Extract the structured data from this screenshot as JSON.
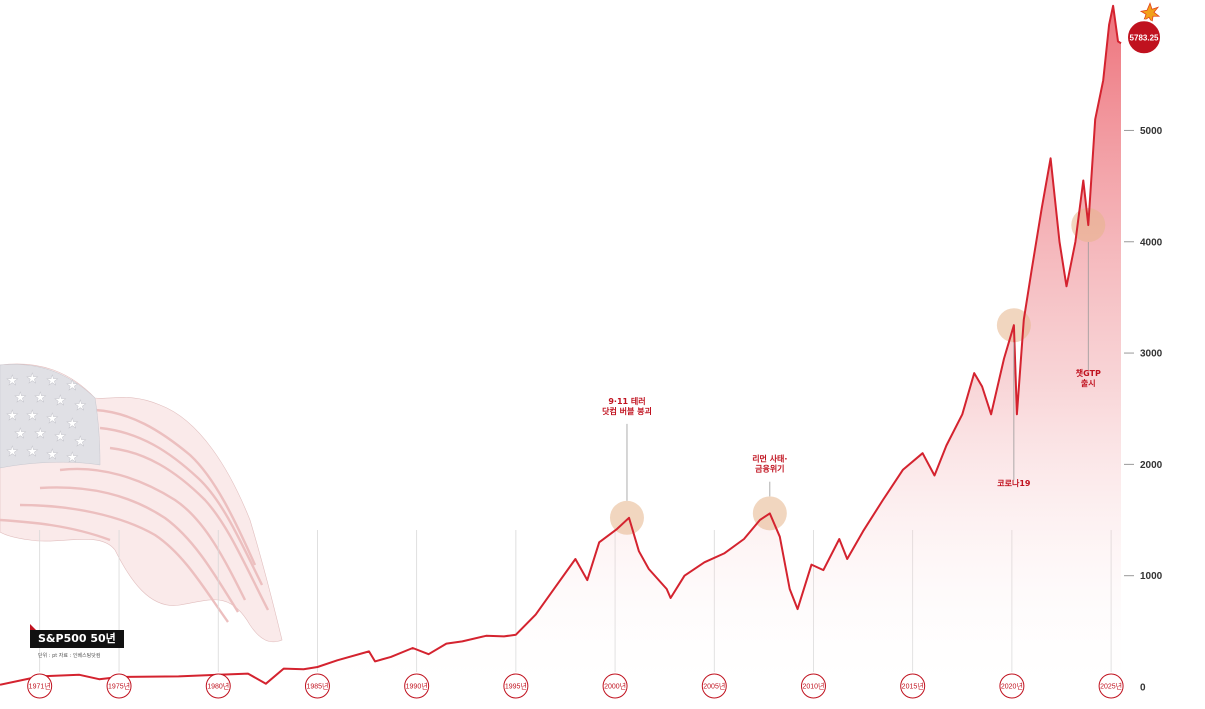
{
  "chart_data": {
    "type": "line",
    "title": "S&P500 50년",
    "subtitle": "단위 : pt  자료 : 인베스팅닷컴",
    "xlabel": "",
    "ylabel": "",
    "xlim": [
      1969,
      2025.6
    ],
    "ylim": [
      0,
      6100
    ],
    "y_ticks": [
      0,
      1000,
      2000,
      3000,
      4000,
      5000
    ],
    "x_ticks": [
      {
        "year": 1971,
        "label": "1971년"
      },
      {
        "year": 1975,
        "label": "1975년"
      },
      {
        "year": 1980,
        "label": "1980년"
      },
      {
        "year": 1985,
        "label": "1985년"
      },
      {
        "year": 1990,
        "label": "1990년"
      },
      {
        "year": 1995,
        "label": "1995년"
      },
      {
        "year": 2000,
        "label": "2000년"
      },
      {
        "year": 2005,
        "label": "2005년"
      },
      {
        "year": 2010,
        "label": "2010년"
      },
      {
        "year": 2015,
        "label": "2015년"
      },
      {
        "year": 2020,
        "label": "2020년"
      },
      {
        "year": 2025,
        "label": "2025년"
      }
    ],
    "series": [
      {
        "name": "S&P500",
        "color": "#d4232f",
        "points": [
          [
            1969,
            20
          ],
          [
            1971,
            95
          ],
          [
            1973,
            110
          ],
          [
            1974,
            70
          ],
          [
            1975,
            90
          ],
          [
            1978,
            95
          ],
          [
            1980,
            110
          ],
          [
            1981.5,
            120
          ],
          [
            1982.4,
            30
          ],
          [
            1983.3,
            165
          ],
          [
            1984.3,
            160
          ],
          [
            1985,
            180
          ],
          [
            1986,
            240
          ],
          [
            1987.6,
            320
          ],
          [
            1987.9,
            230
          ],
          [
            1988.7,
            270
          ],
          [
            1989.8,
            350
          ],
          [
            1990.6,
            295
          ],
          [
            1991.5,
            390
          ],
          [
            1992.3,
            410
          ],
          [
            1993.5,
            460
          ],
          [
            1994.4,
            455
          ],
          [
            1995,
            470
          ],
          [
            1996,
            650
          ],
          [
            1997,
            900
          ],
          [
            1998,
            1150
          ],
          [
            1998.6,
            960
          ],
          [
            1999.2,
            1300
          ],
          [
            2000.1,
            1420
          ],
          [
            2000.7,
            1520
          ],
          [
            2001.2,
            1220
          ],
          [
            2001.7,
            1060
          ],
          [
            2002.6,
            880
          ],
          [
            2002.8,
            800
          ],
          [
            2003.5,
            1000
          ],
          [
            2004.5,
            1120
          ],
          [
            2005.5,
            1200
          ],
          [
            2006.5,
            1330
          ],
          [
            2007.3,
            1500
          ],
          [
            2007.8,
            1560
          ],
          [
            2008.3,
            1350
          ],
          [
            2008.8,
            880
          ],
          [
            2009.2,
            700
          ],
          [
            2009.9,
            1100
          ],
          [
            2010.5,
            1050
          ],
          [
            2011.3,
            1330
          ],
          [
            2011.7,
            1150
          ],
          [
            2012.5,
            1400
          ],
          [
            2013.5,
            1680
          ],
          [
            2014.5,
            1950
          ],
          [
            2015.5,
            2100
          ],
          [
            2016.1,
            1900
          ],
          [
            2016.7,
            2170
          ],
          [
            2017.5,
            2450
          ],
          [
            2018.1,
            2820
          ],
          [
            2018.5,
            2700
          ],
          [
            2018.95,
            2450
          ],
          [
            2019.6,
            2950
          ],
          [
            2020.1,
            3250
          ],
          [
            2020.25,
            2450
          ],
          [
            2020.6,
            3300
          ],
          [
            2021,
            3750
          ],
          [
            2021.5,
            4300
          ],
          [
            2021.95,
            4750
          ],
          [
            2022.4,
            4000
          ],
          [
            2022.75,
            3600
          ],
          [
            2023.2,
            4000
          ],
          [
            2023.6,
            4550
          ],
          [
            2023.85,
            4150
          ],
          [
            2024.2,
            5100
          ],
          [
            2024.6,
            5450
          ],
          [
            2024.9,
            5950
          ],
          [
            2025.1,
            6120
          ],
          [
            2025.35,
            5800
          ],
          [
            2025.5,
            5783
          ]
        ]
      }
    ],
    "annotations": [
      {
        "year": 2000.6,
        "value": 1520,
        "lines": [
          "9·11 테러",
          "닷컴 버블 붕괴"
        ],
        "label_value": 2490
      },
      {
        "year": 2007.8,
        "value": 1560,
        "lines": [
          "리먼 사태·",
          "금융위기"
        ],
        "label_value": 1970
      },
      {
        "year": 2020.1,
        "value": 3250,
        "lines": [
          "코로나19"
        ],
        "label_value": 1750
      },
      {
        "year": 2023.85,
        "value": 4150,
        "lines": [
          "챗GTP",
          "출시"
        ],
        "label_value": 2740
      }
    ],
    "last_value_label": "5783.25",
    "last_value": 5783
  },
  "colors": {
    "line": "#d4232f",
    "area_top": "#e8434f",
    "badge": "#c0121f",
    "highlight": "#e6b58a",
    "axis_text": "#333333"
  },
  "icons": [
    "us-flag-icon",
    "bomb-icon",
    "spark-icon"
  ]
}
